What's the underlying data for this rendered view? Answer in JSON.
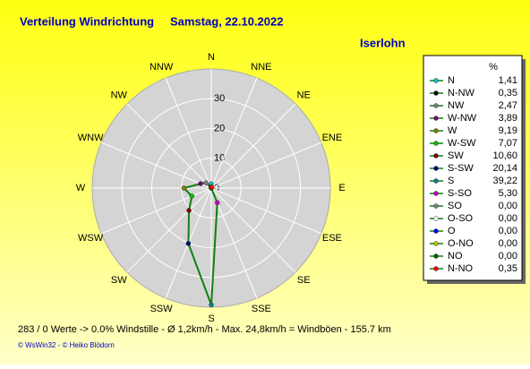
{
  "chart_data": {
    "type": "radar",
    "title": "Verteilung Windrichtung",
    "subtitle": "Samstag, 22.10.2022",
    "location": "Iserlohn",
    "legend_header": "%",
    "direction_labels": [
      "N",
      "NNE",
      "NE",
      "ENE",
      "E",
      "ESE",
      "SE",
      "SSE",
      "S",
      "SSW",
      "SW",
      "WSW",
      "W",
      "WNW",
      "NW",
      "NNW"
    ],
    "categories": [
      "N",
      "N-NW",
      "NW",
      "W-NW",
      "W",
      "W-SW",
      "SW",
      "S-SW",
      "S",
      "S-SO",
      "SO",
      "O-SO",
      "O",
      "O-NO",
      "NO",
      "N-NO"
    ],
    "values": [
      1.41,
      0.35,
      2.47,
      3.89,
      9.19,
      7.07,
      10.6,
      20.14,
      39.22,
      5.3,
      0,
      0,
      0,
      0,
      0,
      0.35
    ],
    "value_labels": [
      "1,41",
      "0,35",
      "2,47",
      "3,89",
      "9,19",
      "7,07",
      "10,60",
      "20,14",
      "39,22",
      "5,30",
      "0,00",
      "0,00",
      "0,00",
      "0,00",
      "0,00",
      "0,35"
    ],
    "colors": [
      "#00c0c0",
      "#000000",
      "#808080",
      "#800080",
      "#808000",
      "#00c000",
      "#800000",
      "#000080",
      "#008080",
      "#c000c0",
      "#808080",
      "#ffffff",
      "#0000ff",
      "#c0c000",
      "#006000",
      "#ff0000"
    ],
    "line_color": "#108010",
    "rlim": [
      0,
      40
    ],
    "rticks": [
      0,
      10,
      20,
      30
    ],
    "footer": "283 / 0 Werte  -> 0.0% Windstille   -   Ø 1,2km/h  -  Max. 24,8km/h = Windböen   -   155.7 km",
    "credits": "© WsWin32  -  © Heiko Blödorn"
  }
}
